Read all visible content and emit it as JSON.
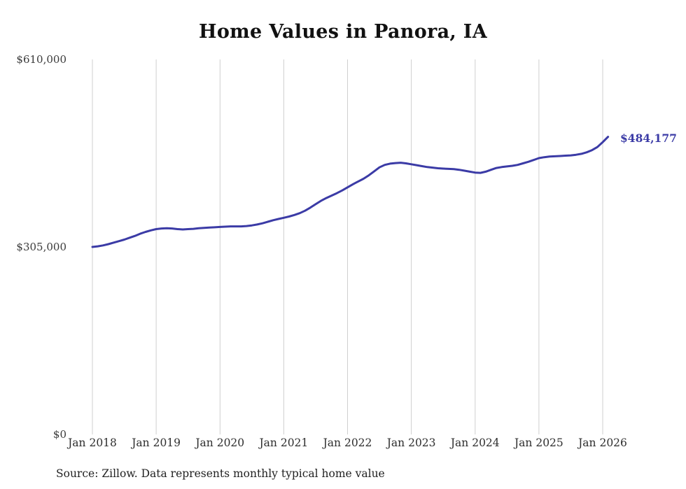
{
  "source_note": "Source: Zillow. Data represents monthly typical home value",
  "chart_data": {
    "type": "line",
    "title": "Home Values in Panora, IA",
    "legend": "none",
    "grid": "vertical-only",
    "line_color": "#3b3ba6",
    "gridline_color": "#cfcfcf",
    "end_label": "$484,177",
    "end_value": 484177,
    "ylim": [
      0,
      610000
    ],
    "y_ticks": [
      {
        "label": "$610,000",
        "value": 610000
      },
      {
        "label": "$305,000",
        "value": 305000
      },
      {
        "label": "$0",
        "value": 0
      }
    ],
    "x_ticks": [
      "Jan 2018",
      "Jan 2019",
      "Jan 2020",
      "Jan 2021",
      "Jan 2022",
      "Jan 2023",
      "Jan 2024",
      "Jan 2025",
      "Jan 2026"
    ],
    "x_start": "Jan 2018",
    "x_frequency": "monthly",
    "values": [
      305000,
      306000,
      307500,
      309500,
      312000,
      314500,
      317000,
      320000,
      323000,
      326500,
      329500,
      332000,
      334000,
      335000,
      335500,
      335000,
      334000,
      333500,
      334000,
      334500,
      335500,
      336000,
      336500,
      337000,
      337500,
      338000,
      338500,
      338500,
      338500,
      339000,
      340000,
      341500,
      343500,
      346000,
      348500,
      350500,
      352500,
      354500,
      357000,
      360000,
      364000,
      369000,
      374500,
      380000,
      384500,
      388500,
      392500,
      397000,
      402000,
      407000,
      411500,
      416000,
      421500,
      428000,
      434500,
      438500,
      440500,
      441500,
      442000,
      441000,
      439500,
      438000,
      436500,
      435000,
      434000,
      433000,
      432500,
      432000,
      431500,
      430500,
      429000,
      427500,
      426000,
      425500,
      427500,
      430500,
      433500,
      435000,
      436000,
      437000,
      438500,
      441000,
      443500,
      446500,
      449500,
      451000,
      452000,
      452500,
      453000,
      453500,
      454000,
      455000,
      456500,
      459000,
      462500,
      467500,
      475500,
      484177
    ]
  }
}
